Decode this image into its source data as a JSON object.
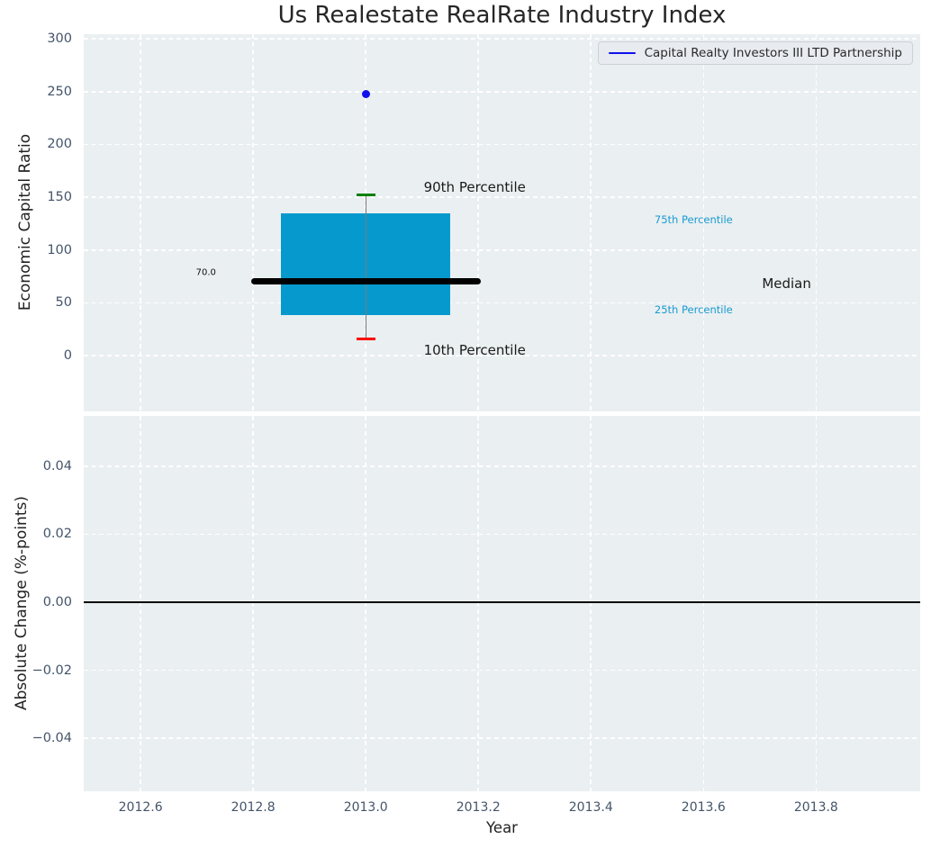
{
  "colors": {
    "plot_bg": "#eaeff1",
    "grid": "#ffffff",
    "box_fill": "#0699ce",
    "median_line": "#000000",
    "whisker": "#7a7a7a",
    "p90_cap": "#008000",
    "p10_cap": "#ff0000",
    "company_point": "#1111ee",
    "tick_label": "#44546a",
    "text": "#1a1a1a",
    "percentile_label": "#199bd2",
    "zero_line": "#000000"
  },
  "chart_data": [
    {
      "type": "boxplot",
      "title": "Us Realestate RealRate Industry Index",
      "ylabel": "Economic Capital Ratio",
      "xlabel": "",
      "xlim": [
        2012.499,
        2013.985
      ],
      "ylim": [
        -52.8,
        304.3
      ],
      "xticks": [
        2012.6,
        2012.8,
        2013.0,
        2013.2,
        2013.4,
        2013.6,
        2013.8
      ],
      "show_xtick_labels": false,
      "yticks": [
        0,
        50,
        100,
        150,
        200,
        250,
        300
      ],
      "grid": true,
      "legend": {
        "position": "upper right",
        "entries": [
          {
            "label": "Capital Realty Investors III LTD Partnership",
            "color": "#1111ee"
          }
        ]
      },
      "box": {
        "x": 2013.0,
        "p10": 16,
        "p25": 38,
        "median": 70,
        "p75": 135,
        "p90": 152,
        "median_label": "70.0",
        "box_halfwidth": 0.15,
        "median_halfwidth": 0.204,
        "cap_halfwidth": 0.017,
        "company_point": {
          "name": "Capital Realty Investors III LTD Partnership",
          "x": 2013.0,
          "value": 248
        }
      },
      "annotations": [
        {
          "name": "p90-label",
          "text": "90th Percentile",
          "x": 2013.103,
          "y": 152,
          "dy": -9,
          "align": "left",
          "color": "#1a1a1a",
          "size": 15
        },
        {
          "name": "p10-label",
          "text": "10th Percentile",
          "x": 2013.103,
          "y": 16,
          "dy": 13,
          "align": "left",
          "color": "#1a1a1a",
          "size": 15
        },
        {
          "name": "p75-label",
          "text": "75th Percentile",
          "x": 2013.513,
          "y": 135,
          "dy": 7,
          "align": "left",
          "color": "#199bd2",
          "size": 11.5
        },
        {
          "name": "p25-label",
          "text": "25th Percentile",
          "x": 2013.513,
          "y": 38,
          "dy": -6,
          "align": "left",
          "color": "#199bd2",
          "size": 11.5
        },
        {
          "name": "median-label",
          "text": "Median",
          "x": 2013.704,
          "y": 70,
          "dy": 2,
          "align": "left",
          "color": "#1a1a1a",
          "size": 15
        },
        {
          "name": "median-value-label",
          "text": "70.0",
          "x": 2012.734,
          "y": 70,
          "dy": -10,
          "align": "right",
          "color": "#111111",
          "size": 10
        }
      ]
    },
    {
      "type": "line",
      "title": "",
      "ylabel": "Absolute Change (%-points)",
      "xlabel": "Year",
      "xlim": [
        2012.499,
        2013.985
      ],
      "ylim": [
        -0.0556,
        0.0548
      ],
      "xticks": [
        2012.6,
        2012.8,
        2013.0,
        2013.2,
        2013.4,
        2013.6,
        2013.8
      ],
      "xtick_labels": [
        "2012.6",
        "2012.8",
        "2013.0",
        "2013.2",
        "2013.4",
        "2013.6",
        "2013.8"
      ],
      "show_xtick_labels": true,
      "ytick_values": [
        0.04,
        0.02,
        0,
        -0.02,
        -0.04
      ],
      "ytick_labels": [
        "0.04",
        "0.02",
        "0.00",
        "−0.02",
        "−0.04"
      ],
      "grid": true,
      "zero_line": 0.0,
      "series": []
    }
  ]
}
